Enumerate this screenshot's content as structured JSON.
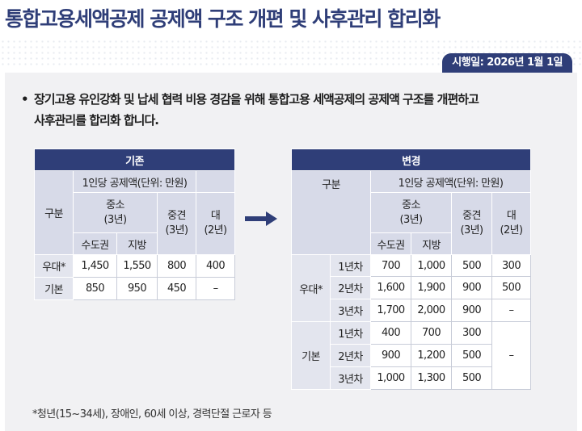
{
  "title": "통합고용세액공제 공제액 구조 개편 및 사후관리 합리화",
  "date_badge": "시행일: 2026년 1월 1일",
  "bullet": {
    "line1": "장기고용 유인강화 및 납세 협력 비용 경감을 위해 통합고용 세액공제의 공제액 구조를 개편하고",
    "line2": "사후관리를 합리화 합니다."
  },
  "before": {
    "header": "기존",
    "col_category": "구분",
    "col_amount": "1인당 공제액(단위: 만원)",
    "col_sme": "중소\n(3년)",
    "col_mid": "중견\n(3년)",
    "col_large": "대\n(2년)",
    "col_capital": "수도권",
    "col_local": "지방",
    "rows": [
      {
        "label": "우대*",
        "capital": "1,450",
        "local": "1,550",
        "mid": "800",
        "large": "400"
      },
      {
        "label": "기본",
        "capital": "850",
        "local": "950",
        "mid": "450",
        "large": "–"
      }
    ]
  },
  "after": {
    "header": "변경",
    "col_category": "구분",
    "col_amount": "1인당 공제액(단위: 만원)",
    "col_sme": "중소\n(3년)",
    "col_mid": "중견\n(3년)",
    "col_large": "대\n(2년)",
    "col_capital": "수도권",
    "col_local": "지방",
    "groups": [
      {
        "label": "우대*",
        "rows": [
          {
            "year": "1년차",
            "capital": "700",
            "local": "1,000",
            "mid": "500",
            "large": "300"
          },
          {
            "year": "2년차",
            "capital": "1,600",
            "local": "1,900",
            "mid": "900",
            "large": "500"
          },
          {
            "year": "3년차",
            "capital": "1,700",
            "local": "2,000",
            "mid": "900",
            "large": "–"
          }
        ]
      },
      {
        "label": "기본",
        "large_merged": "–",
        "rows": [
          {
            "year": "1년차",
            "capital": "400",
            "local": "700",
            "mid": "300"
          },
          {
            "year": "2년차",
            "capital": "900",
            "local": "1,200",
            "mid": "500"
          },
          {
            "year": "3년차",
            "capital": "1,000",
            "local": "1,300",
            "mid": "500"
          }
        ]
      }
    ]
  },
  "footnote": "*청년(15~34세), 장애인, 60세 이상, 경력단절 근로자 등",
  "colors": {
    "accent": "#2f3e78",
    "header_sub": "#d7dae8",
    "panel": "#f1f1f3"
  }
}
